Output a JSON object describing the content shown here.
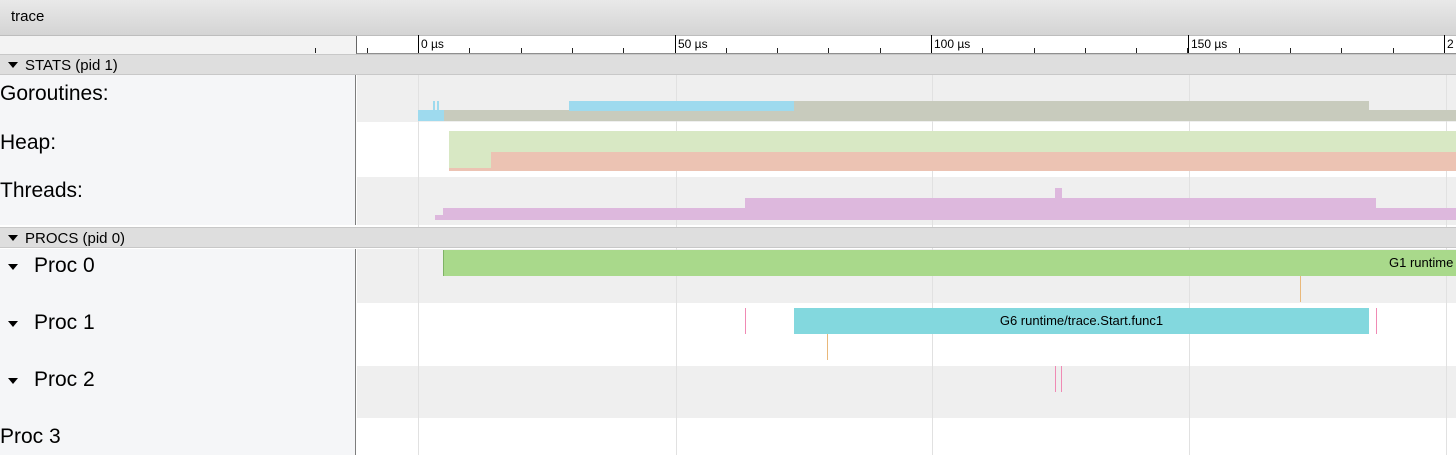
{
  "window": {
    "title": "trace"
  },
  "ruler": {
    "major_ticks": [
      {
        "label": "0 µs"
      },
      {
        "label": "50 µs"
      },
      {
        "label": "100 µs"
      },
      {
        "label": "150 µs"
      },
      {
        "label": "2"
      }
    ]
  },
  "stats_section": {
    "header": "STATS (pid 1)",
    "rows": [
      {
        "label": "Goroutines:"
      },
      {
        "label": "Heap:"
      },
      {
        "label": "Threads:"
      }
    ]
  },
  "procs_section": {
    "header": "PROCS (pid 0)",
    "rows": [
      {
        "label": "Proc 0",
        "slice_label": "G1 runtime"
      },
      {
        "label": "Proc 1",
        "slice_label": "G6 runtime/trace.Start.func1"
      },
      {
        "label": "Proc 2"
      },
      {
        "label": "Proc 3"
      }
    ]
  },
  "colors": {
    "goroutines_runnable": "#9edaee",
    "goroutines_running": "#c8cbbd",
    "heap_allocated": "#d8e8c4",
    "heap_next_gc": "#ecc3b3",
    "threads": "#ddb8dd",
    "proc0_slice": "#a9d98b",
    "proc1_slice": "#83d8de",
    "marker_pink": "#f08ab4",
    "marker_orange": "#e9b87a"
  }
}
